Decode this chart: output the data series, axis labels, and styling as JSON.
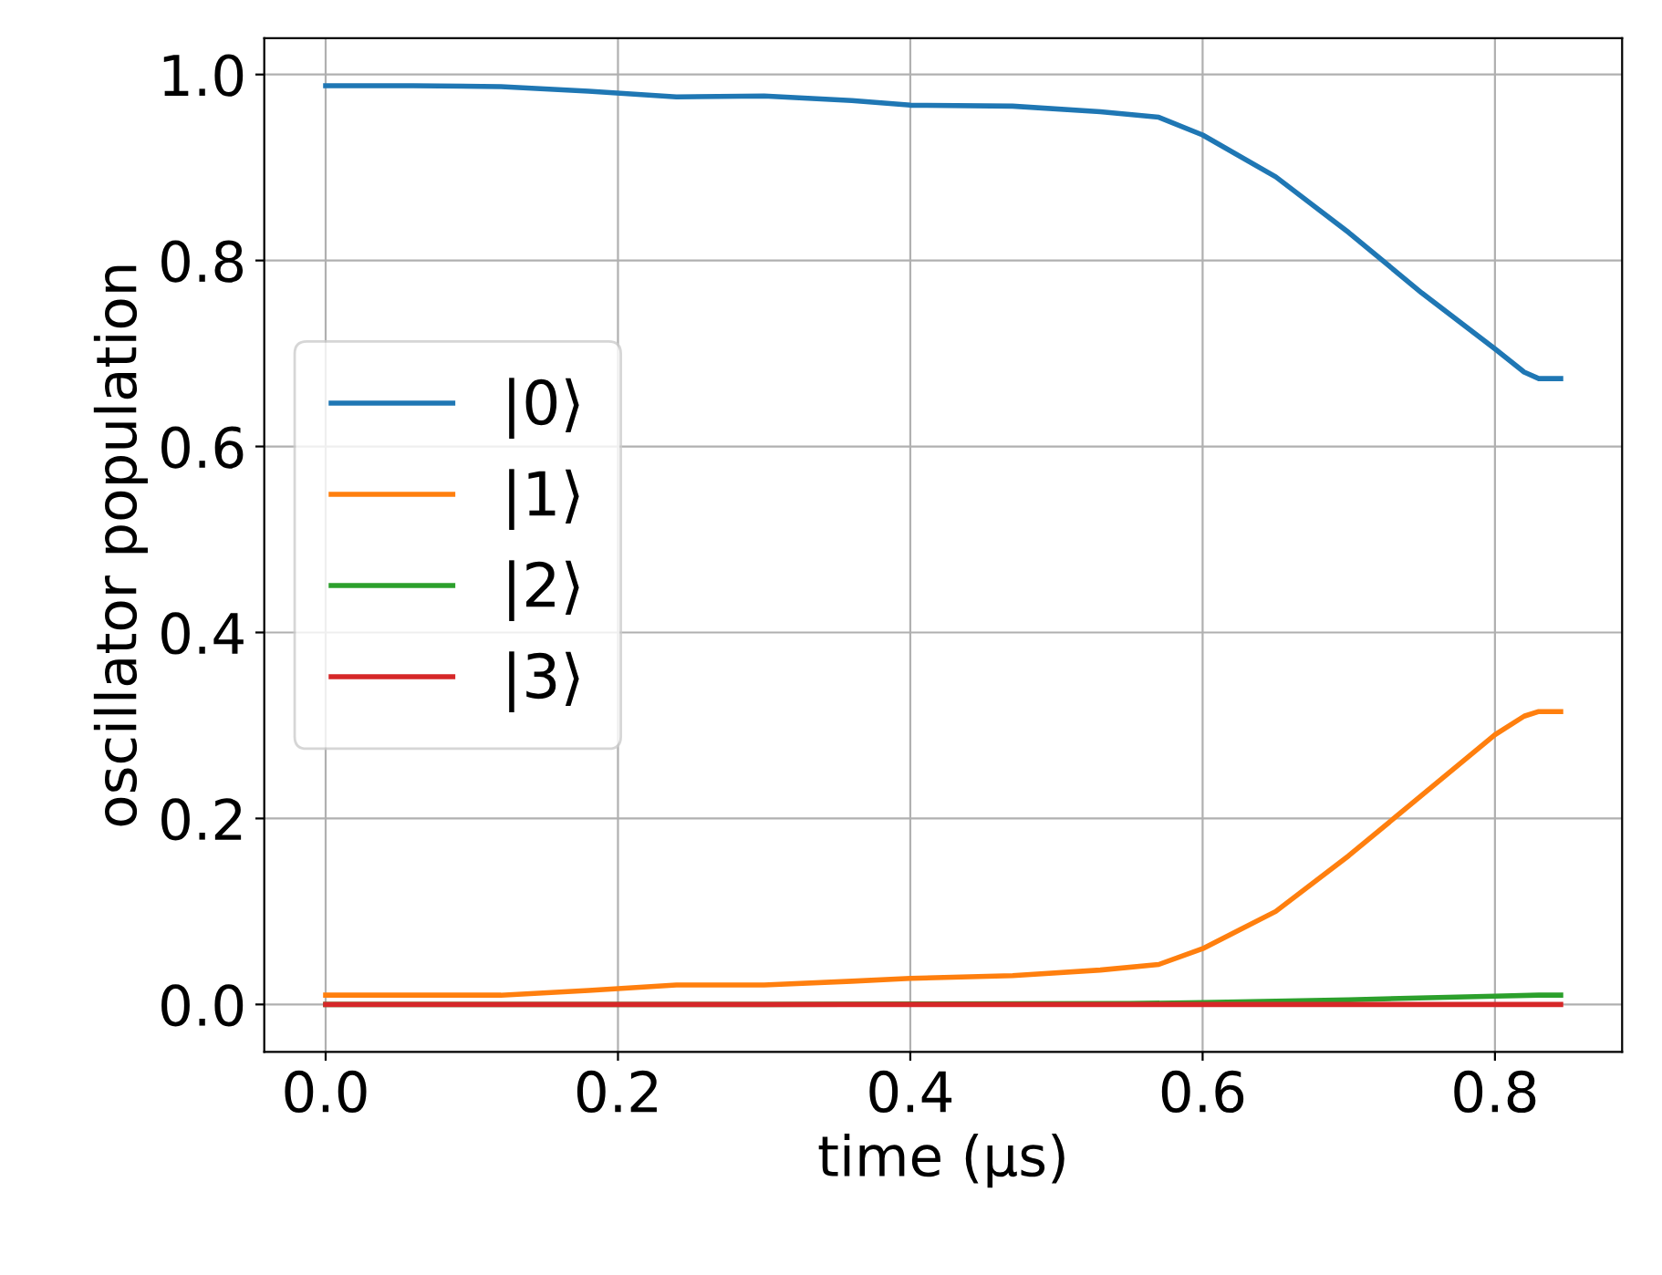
{
  "chart_data": {
    "type": "line",
    "xlabel": "time (μs)",
    "ylabel": "oscillator population",
    "xlim": [
      -0.042,
      0.887
    ],
    "ylim": [
      -0.051,
      1.039
    ],
    "xticks": [
      {
        "value": 0,
        "label": "0.0"
      },
      0.2,
      0.4,
      0.6,
      0.8
    ],
    "yticks": [
      {
        "value": 0,
        "label": "0.0"
      },
      0.2,
      0.4,
      0.6,
      0.8,
      {
        "value": 1,
        "label": "1.0"
      }
    ],
    "grid": true,
    "legend": "left",
    "marker": "none",
    "line_style": "solid",
    "series": [
      {
        "name": "|0⟩",
        "color": "#1f77b4",
        "x": [
          0,
          0.06,
          0.12,
          0.18,
          0.24,
          0.3,
          0.36,
          0.4,
          0.47,
          0.53,
          0.57,
          0.6,
          0.65,
          0.7,
          0.75,
          0.8,
          0.82,
          0.83,
          0.845
        ],
        "values": [
          0.988,
          0.988,
          0.987,
          0.982,
          0.976,
          0.977,
          0.972,
          0.967,
          0.966,
          0.96,
          0.954,
          0.935,
          0.89,
          0.83,
          0.765,
          0.705,
          0.68,
          0.673,
          0.673
        ]
      },
      {
        "name": "|1⟩",
        "color": "#ff7f0e",
        "x": [
          0,
          0.06,
          0.12,
          0.18,
          0.24,
          0.3,
          0.36,
          0.4,
          0.47,
          0.53,
          0.57,
          0.6,
          0.65,
          0.7,
          0.75,
          0.8,
          0.82,
          0.83,
          0.845
        ],
        "values": [
          0.01,
          0.01,
          0.01,
          0.015,
          0.021,
          0.021,
          0.025,
          0.028,
          0.031,
          0.037,
          0.043,
          0.06,
          0.1,
          0.16,
          0.225,
          0.29,
          0.31,
          0.315,
          0.315
        ]
      },
      {
        "name": "|2⟩",
        "color": "#2ca02c",
        "x": [
          0,
          0.3,
          0.55,
          0.6,
          0.7,
          0.8,
          0.83,
          0.845
        ],
        "values": [
          0,
          0,
          0.001,
          0.002,
          0.005,
          0.009,
          0.01,
          0.01
        ]
      },
      {
        "name": "|3⟩",
        "color": "#d62728",
        "x": [
          0,
          0.3,
          0.6,
          0.845
        ],
        "values": [
          0,
          0,
          0,
          0
        ]
      }
    ]
  }
}
